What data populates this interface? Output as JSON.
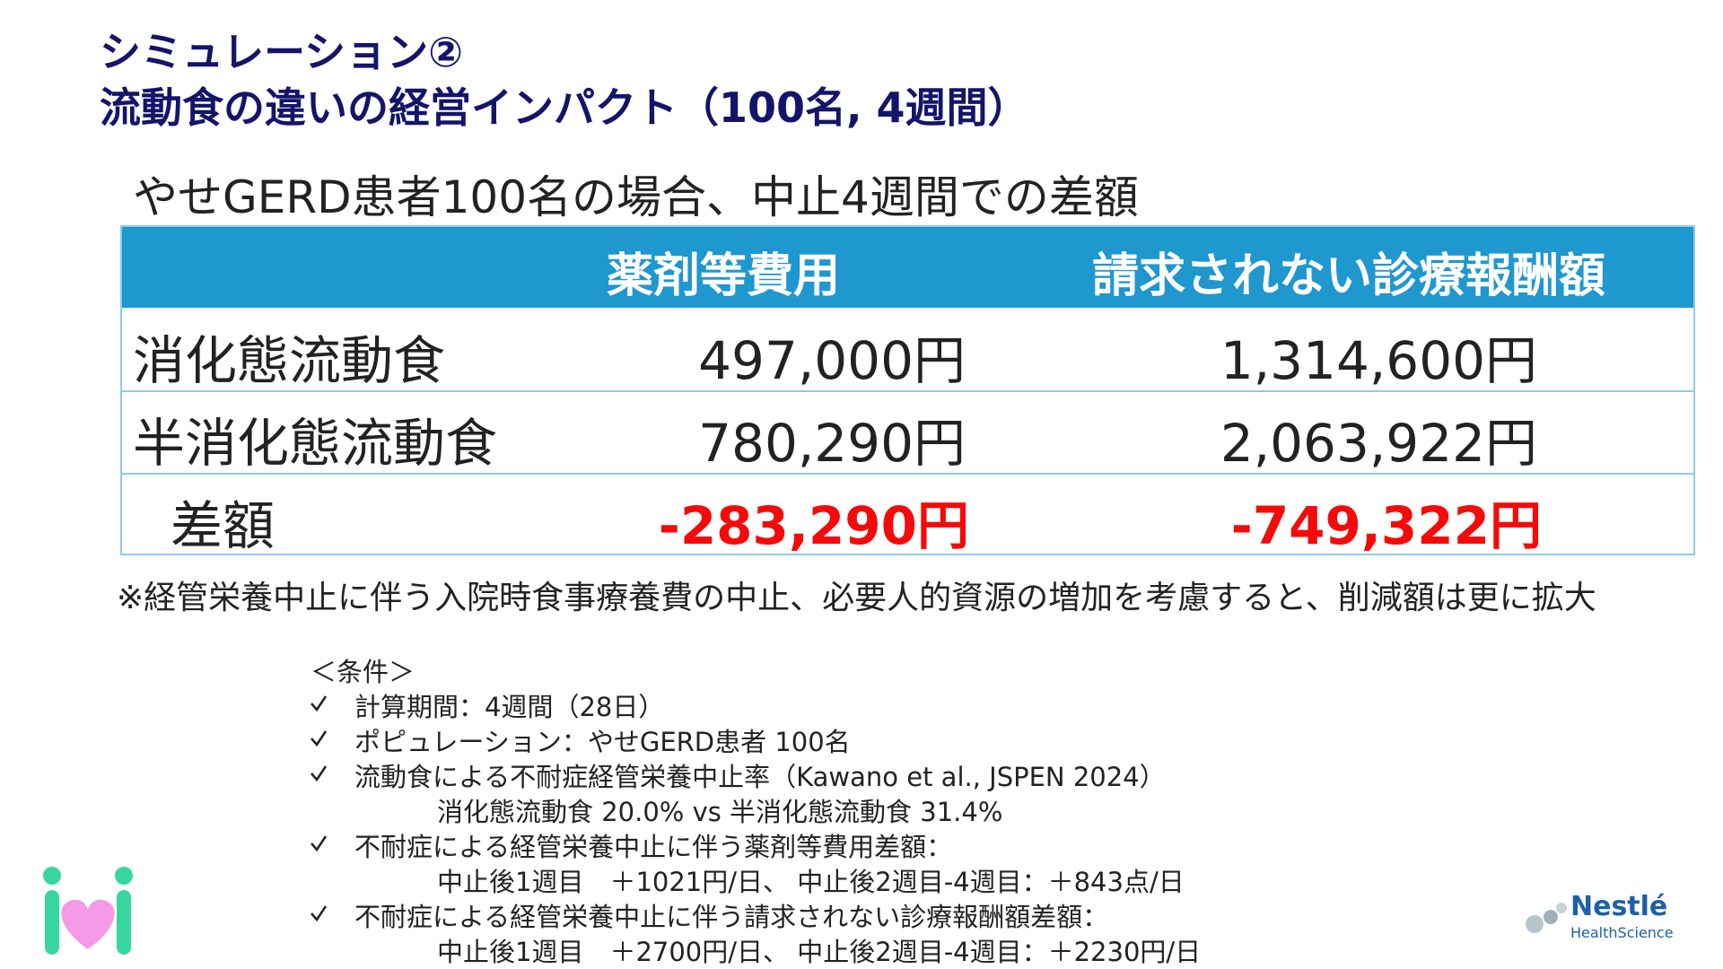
{
  "header": {
    "title_line1": "シミュレーション②",
    "title_line2": "流動食の違いの経営インパクト（100名, 4週間）"
  },
  "subtitle": "やせGERD患者100名の場合、中止4週間での差額",
  "table": {
    "columns": [
      "薬剤等費用",
      "請求されない診療報酬額"
    ],
    "rows": [
      {
        "label": "消化態流動食",
        "cells": [
          "497,000円",
          "1,314,600円"
        ]
      },
      {
        "label": "半消化態流動食",
        "cells": [
          "780,290円",
          "2,063,922円"
        ]
      },
      {
        "label": "差額",
        "cells": [
          "-283,290円",
          "-749,322円"
        ]
      }
    ]
  },
  "note": "※経管栄養中止に伴う入院時食事療養費の中止、必要人的資源の増加を考慮すると、削減額は更に拡大",
  "conditions": {
    "heading": "＜条件＞",
    "items": [
      {
        "text": "計算期間：4週間（28日）"
      },
      {
        "text": "ポピュレーション：やせGERD患者 100名"
      },
      {
        "text": "流動食による不耐症経管栄養中止率（Kawano et al., JSPEN 2024）",
        "sub": "消化態流動食 20.0% vs 半消化態流動食 31.4%"
      },
      {
        "text": "不耐症による経管栄養中止に伴う薬剤等費用差額：",
        "sub": "中止後1週目　＋1021円/日、 中止後2週目-4週目：＋843点/日"
      },
      {
        "text": "不耐症による経管栄養中止に伴う請求されない診療報酬額差額：",
        "sub": "中止後1週目　＋2700円/日、 中止後2週目-4週目：＋2230円/日"
      }
    ]
  },
  "logo": {
    "brand": "Nestlé",
    "division": "HealthScience"
  }
}
